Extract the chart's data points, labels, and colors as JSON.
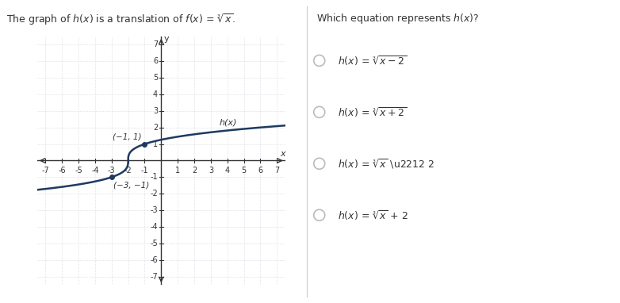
{
  "curve_color": "#1e3a5f",
  "curve_linewidth": 1.8,
  "grid_color": "#c8cdd8",
  "axis_color": "#333333",
  "point1": [
    -1,
    1
  ],
  "point2": [
    -3,
    -1
  ],
  "label_hx": "h(x)",
  "xlim": [
    -7.5,
    7.5
  ],
  "ylim": [
    -7.5,
    7.5
  ],
  "background_color": "#ffffff",
  "font_color": "#333333",
  "radio_color": "#bbbbbb",
  "shift": 2,
  "tick_fontsize": 7,
  "label_fontsize": 8,
  "title_fontsize": 9,
  "choice_fontsize": 9
}
